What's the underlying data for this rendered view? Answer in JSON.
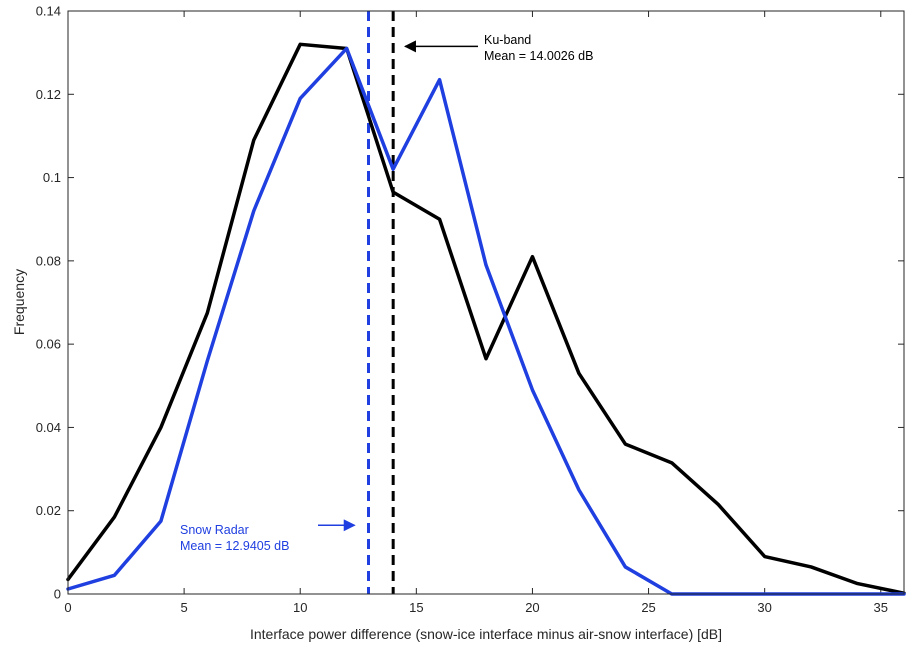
{
  "chart_data": {
    "type": "line",
    "xlabel": "Interface power difference (snow-ice interface minus air-snow interface) [dB]",
    "ylabel": "Frequency",
    "xlim": [
      0,
      36
    ],
    "ylim": [
      0,
      0.14
    ],
    "xticks": [
      0,
      5,
      10,
      15,
      20,
      25,
      30,
      35
    ],
    "xtick_labels": [
      "0",
      "5",
      "10",
      "15",
      "20",
      "25",
      "30",
      "35"
    ],
    "yticks": [
      0,
      0.02,
      0.04,
      0.06,
      0.08,
      0.1,
      0.12,
      0.14
    ],
    "ytick_labels": [
      "0",
      "0.02",
      "0.04",
      "0.06",
      "0.08",
      "0.1",
      "0.12",
      "0.14"
    ],
    "grid": false,
    "x": [
      0,
      2,
      4,
      6,
      8,
      10,
      12,
      14,
      16,
      18,
      20,
      22,
      24,
      26,
      28,
      30,
      32,
      34,
      36
    ],
    "series": [
      {
        "color": "#000000",
        "values": [
          0.0035,
          0.0185,
          0.04,
          0.0675,
          0.109,
          0.132,
          0.131,
          0.0965,
          0.09,
          0.0565,
          0.081,
          0.053,
          0.036,
          0.0315,
          0.0215,
          0.009,
          0.0065,
          0.0025,
          0.0002
        ]
      },
      {
        "color": "#1f3fe0",
        "values": [
          0.0012,
          0.0045,
          0.0175,
          0.056,
          0.092,
          0.119,
          0.131,
          0.102,
          0.1235,
          0.079,
          0.049,
          0.025,
          0.0065,
          0,
          0,
          0,
          0,
          0,
          0
        ]
      }
    ],
    "mean_lines": [
      {
        "x": 14.0026,
        "color": "#000000",
        "style": "dashed"
      },
      {
        "x": 12.9405,
        "color": "#1f3fe0",
        "style": "dashed"
      }
    ],
    "annotations": [
      {
        "lines": [
          "Ku-band",
          "Mean = 14.0026 dB"
        ],
        "color": "#000000",
        "arrow_to_x": 14.0026,
        "arrow_at_y": 0.1315
      },
      {
        "lines": [
          "Snow Radar",
          "Mean = 12.9405 dB"
        ],
        "color": "#1f3fe0",
        "arrow_to_x": 12.9405,
        "arrow_at_y": 0.0165
      }
    ]
  }
}
